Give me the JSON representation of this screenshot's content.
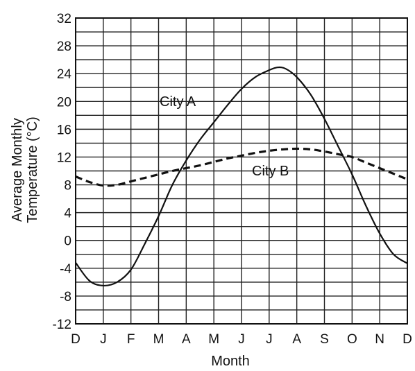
{
  "chart_data": {
    "type": "line",
    "xlabel": "Month",
    "ylabel_lines": [
      "Average Monthly",
      "Temperature (°C)"
    ],
    "x_ticks": [
      "D",
      "J",
      "F",
      "M",
      "A",
      "M",
      "J",
      "J",
      "A",
      "S",
      "O",
      "N",
      "D"
    ],
    "ylim": [
      -12,
      32
    ],
    "y_ticks": [
      32,
      28,
      24,
      20,
      16,
      12,
      8,
      4,
      0,
      -4,
      -8,
      -12
    ],
    "grid": true,
    "legend": "none",
    "series": [
      {
        "name": "City A",
        "style": "solid",
        "color": "#111111",
        "points": [
          [
            0,
            -3.2
          ],
          [
            0.5,
            -5.8
          ],
          [
            1,
            -6.5
          ],
          [
            1.5,
            -6.0
          ],
          [
            2,
            -4.2
          ],
          [
            2.5,
            -0.5
          ],
          [
            3,
            3.5
          ],
          [
            3.5,
            8.0
          ],
          [
            4,
            11.5
          ],
          [
            4.5,
            14.5
          ],
          [
            5,
            17.0
          ],
          [
            5.5,
            19.5
          ],
          [
            6,
            21.8
          ],
          [
            6.5,
            23.5
          ],
          [
            7,
            24.5
          ],
          [
            7.3,
            24.9
          ],
          [
            7.6,
            24.7
          ],
          [
            8,
            23.5
          ],
          [
            8.5,
            21.0
          ],
          [
            9,
            17.5
          ],
          [
            9.5,
            13.5
          ],
          [
            10,
            9.5
          ],
          [
            10.5,
            5.0
          ],
          [
            11,
            1.0
          ],
          [
            11.5,
            -2.0
          ],
          [
            12,
            -3.3
          ]
        ]
      },
      {
        "name": "City B",
        "style": "dashed",
        "color": "#111111",
        "points": [
          [
            0,
            9.2
          ],
          [
            0.5,
            8.4
          ],
          [
            1,
            7.9
          ],
          [
            1.5,
            8.0
          ],
          [
            2,
            8.5
          ],
          [
            2.5,
            9.0
          ],
          [
            3,
            9.5
          ],
          [
            3.5,
            10.0
          ],
          [
            4,
            10.4
          ],
          [
            4.5,
            10.8
          ],
          [
            5,
            11.3
          ],
          [
            5.5,
            11.8
          ],
          [
            6,
            12.2
          ],
          [
            6.5,
            12.6
          ],
          [
            7,
            12.9
          ],
          [
            7.5,
            13.1
          ],
          [
            8,
            13.2
          ],
          [
            8.5,
            13.1
          ],
          [
            9,
            12.8
          ],
          [
            9.5,
            12.4
          ],
          [
            10,
            12.0
          ],
          [
            10.5,
            11.2
          ],
          [
            11,
            10.4
          ],
          [
            11.5,
            9.6
          ],
          [
            12,
            8.8
          ]
        ]
      }
    ],
    "annotations": [
      {
        "text": "City A",
        "series": "City A"
      },
      {
        "text": "City B",
        "series": "City B"
      }
    ]
  }
}
